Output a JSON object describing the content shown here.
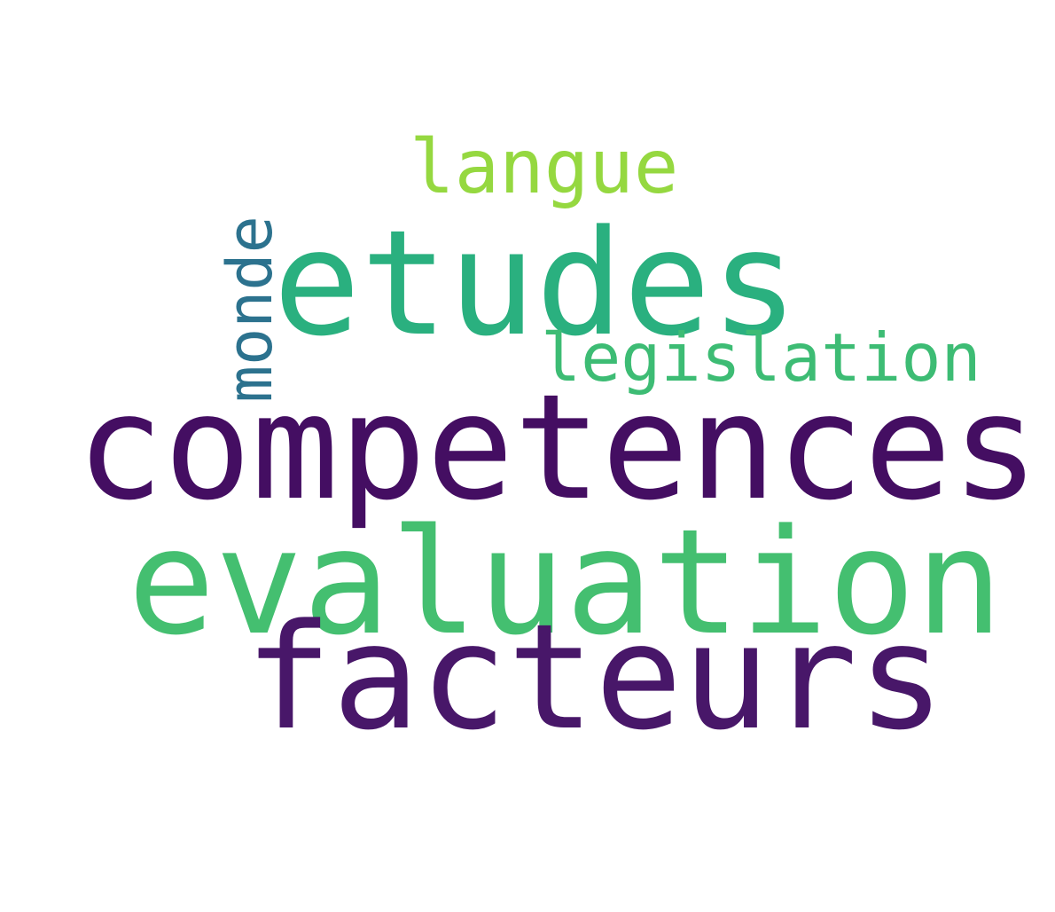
{
  "words": [
    {
      "key": "langue",
      "text": "langue",
      "color": "#95d840"
    },
    {
      "key": "etudes",
      "text": "etudes",
      "color": "#2ab07f"
    },
    {
      "key": "monde",
      "text": "monde",
      "color": "#2c728e"
    },
    {
      "key": "legislation",
      "text": "legislation",
      "color": "#3dbc74"
    },
    {
      "key": "competences",
      "text": "competences",
      "color": "#440e62"
    },
    {
      "key": "evaluation",
      "text": "evaluation",
      "color": "#44bf70"
    },
    {
      "key": "facteurs",
      "text": "facteurs",
      "color": "#481769"
    }
  ]
}
